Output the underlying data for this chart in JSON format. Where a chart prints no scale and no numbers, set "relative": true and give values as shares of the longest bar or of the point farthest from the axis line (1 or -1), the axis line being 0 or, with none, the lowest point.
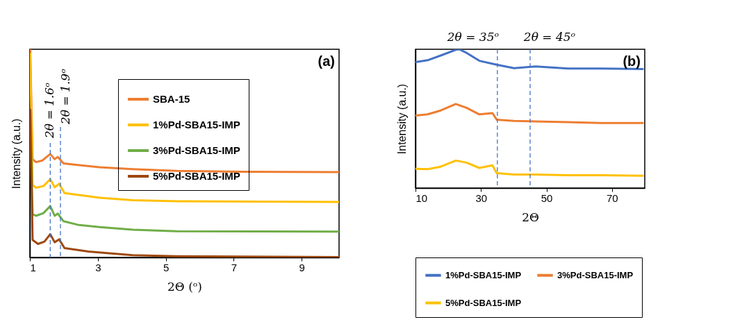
{
  "chart_data": [
    {
      "type": "line",
      "xlabel": "2Θ (ᵒ)",
      "ylabel": "Intensity (a.u.)",
      "xlim": [
        1,
        10.1
      ],
      "xticks": [
        1,
        3,
        5,
        7,
        9
      ],
      "relative": true,
      "legend": "top right",
      "annotations": [
        "(a)"
      ],
      "ref_lines": [
        {
          "axis": "x",
          "value": 1.6,
          "label": "2θ = 1.6ᵒ",
          "color": "#4472c4",
          "line_style": "dashed"
        },
        {
          "axis": "x",
          "value": 1.9,
          "label": "2θ = 1.9ᵒ",
          "color": "#4472c4",
          "line_style": "dashed"
        }
      ],
      "series": [
        {
          "name": "SBA-15",
          "color": "#ed7d31",
          "x": [
            1.01,
            1.08,
            1.18,
            1.37,
            1.6,
            1.73,
            1.82,
            1.99,
            2.41,
            3.06,
            4.03,
            5.33,
            7.27,
            10.1
          ],
          "values": [
            1.0,
            0.472,
            0.458,
            0.466,
            0.497,
            0.472,
            0.483,
            0.452,
            0.444,
            0.433,
            0.424,
            0.416,
            0.412,
            0.41
          ]
        },
        {
          "name": "1%Pd-SBA15-IMP",
          "color": "#ffc000",
          "x": [
            1.01,
            1.08,
            1.18,
            1.4,
            1.6,
            1.73,
            1.86,
            2.02,
            3.06,
            4.03,
            5.33,
            10.1
          ],
          "values": [
            0.978,
            0.348,
            0.335,
            0.343,
            0.376,
            0.337,
            0.354,
            0.309,
            0.287,
            0.275,
            0.27,
            0.267
          ]
        },
        {
          "name": "3%Pd-SBA15-IMP",
          "color": "#70ad47",
          "x": [
            1.01,
            1.08,
            1.18,
            1.4,
            1.6,
            1.73,
            1.82,
            1.99,
            2.41,
            3.06,
            4.03,
            5.33,
            10.1
          ],
          "values": [
            0.708,
            0.208,
            0.2,
            0.213,
            0.247,
            0.2,
            0.211,
            0.174,
            0.157,
            0.146,
            0.133,
            0.126,
            0.124
          ]
        },
        {
          "name": "5%Pd-SBA15-IMP",
          "color": "#9e480e",
          "x": [
            1.01,
            1.08,
            1.24,
            1.43,
            1.6,
            1.73,
            1.86,
            2.02,
            2.73,
            4.03,
            5.33,
            10.1
          ],
          "values": [
            0.708,
            0.084,
            0.065,
            0.076,
            0.112,
            0.073,
            0.087,
            0.045,
            0.028,
            0.011,
            0.006,
            0.002
          ]
        }
      ]
    },
    {
      "type": "line",
      "xlabel": "2Θ",
      "ylabel": "Intensity (a.u.)",
      "xlim": [
        10,
        80
      ],
      "xticks": [
        10,
        30,
        50,
        70
      ],
      "relative": true,
      "legend": "bottom",
      "annotations": [
        "(b)"
      ],
      "ref_lines": [
        {
          "axis": "x",
          "value": 35,
          "label": "2θ = 35ᵒ",
          "color": "#4472c4",
          "line_style": "dashed"
        },
        {
          "axis": "x",
          "value": 45,
          "label": "2θ = 45ᵒ",
          "color": "#4472c4",
          "line_style": "dashed"
        }
      ],
      "series": [
        {
          "name": "1%Pd-SBA15-IMP",
          "color": "#4472c4",
          "x": [
            10,
            13.7,
            17.7,
            22.3,
            23.3,
            25.6,
            29.5,
            34.8,
            40.1,
            46.7,
            56.6,
            66.5,
            79.4
          ],
          "values": [
            0.908,
            0.921,
            0.955,
            0.996,
            1.0,
            0.974,
            0.917,
            0.889,
            0.864,
            0.876,
            0.861,
            0.861,
            0.857
          ]
        },
        {
          "name": "3%Pd-SBA15-IMP",
          "color": "#ed7d31",
          "x": [
            10,
            13.7,
            17.7,
            22.3,
            25.6,
            29.5,
            33.5,
            34.8,
            40.1,
            46.7,
            56.6,
            66.5,
            79.4
          ],
          "values": [
            0.522,
            0.531,
            0.559,
            0.606,
            0.578,
            0.531,
            0.54,
            0.493,
            0.484,
            0.48,
            0.475,
            0.469,
            0.469
          ]
        },
        {
          "name": "5%Pd-SBA15-IMP",
          "color": "#ffc000",
          "x": [
            10,
            13.7,
            17.7,
            22.3,
            25.6,
            29.5,
            33.5,
            34.8,
            40.1,
            46.7,
            56.6,
            66.5,
            79.4
          ],
          "values": [
            0.139,
            0.136,
            0.154,
            0.198,
            0.183,
            0.145,
            0.164,
            0.107,
            0.098,
            0.098,
            0.092,
            0.092,
            0.089
          ]
        }
      ]
    }
  ]
}
